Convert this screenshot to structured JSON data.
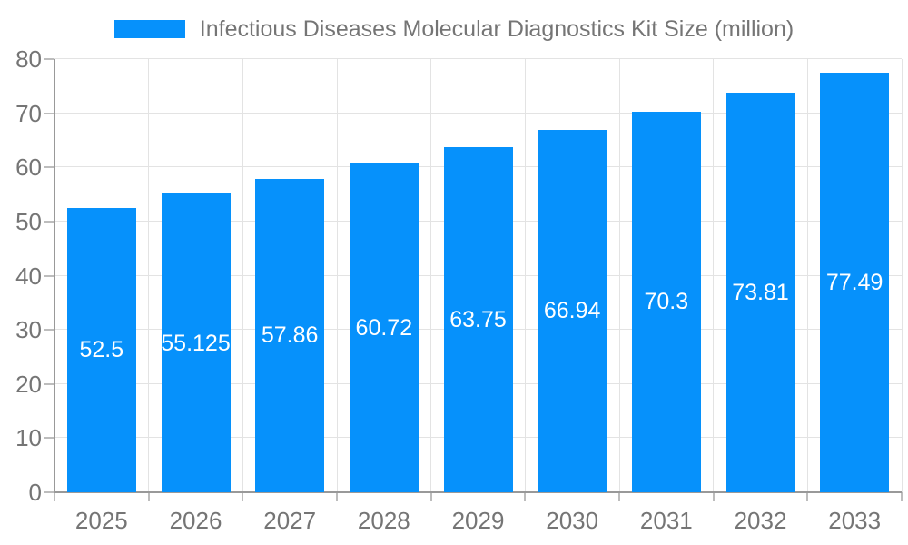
{
  "chart_data": {
    "type": "bar",
    "title": "Infectious Diseases Molecular Diagnostics Kit Size (million)",
    "legend_position": "top",
    "categories": [
      "2025",
      "2026",
      "2027",
      "2028",
      "2029",
      "2030",
      "2031",
      "2032",
      "2033"
    ],
    "series": [
      {
        "name": "Infectious Diseases Molecular Diagnostics Kit Size (million)",
        "values": [
          52.5,
          55.125,
          57.86,
          60.72,
          63.75,
          66.94,
          70.3,
          73.81,
          77.49
        ]
      }
    ],
    "value_labels": [
      "52.5",
      "55.125",
      "57.86",
      "60.72",
      "63.75",
      "66.94",
      "70.3",
      "73.81",
      "77.49"
    ],
    "xlabel": "",
    "ylabel": "",
    "ylim": [
      0,
      80
    ],
    "yticks": [
      0,
      10,
      20,
      30,
      40,
      50,
      60,
      70,
      80
    ],
    "grid": true,
    "colors": {
      "bar": "#0691fb",
      "grid": "#e3e3e3",
      "axis": "#999999",
      "tick": "#bdbdbd",
      "text": "#757575",
      "value_text": "#ffffff",
      "background": "#ffffff"
    }
  }
}
